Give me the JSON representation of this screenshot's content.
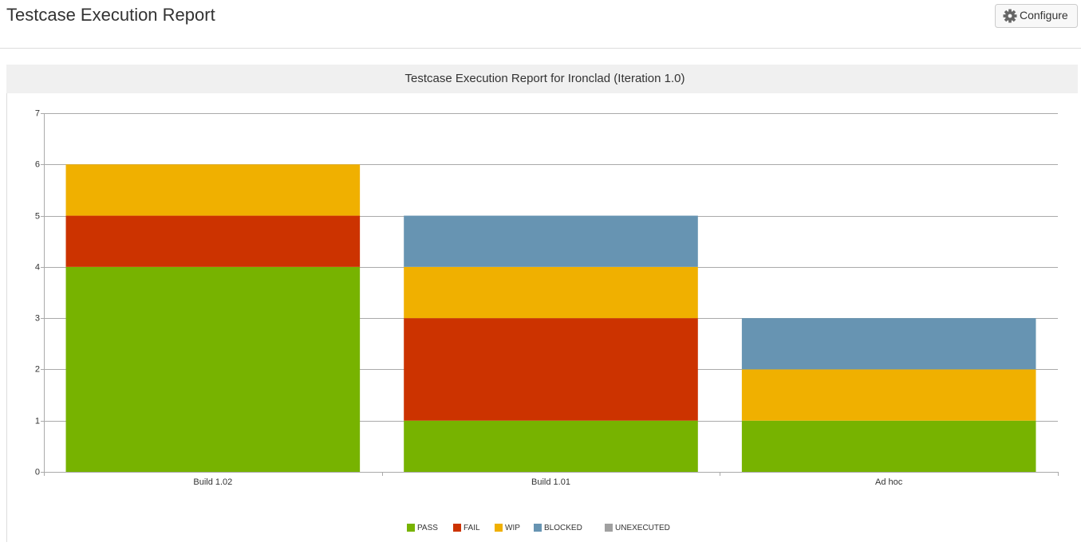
{
  "header": {
    "title": "Testcase Execution Report",
    "button": "Configure"
  },
  "chart_data": {
    "type": "stacked-bar",
    "title": "Testcase Execution Report for Ironclad  (Iteration 1.0)",
    "categories": [
      "Build 1.02",
      "Build 1.01",
      "Ad hoc"
    ],
    "series": [
      {
        "name": "PASS",
        "color": "#77b300",
        "values": [
          4,
          1,
          1
        ]
      },
      {
        "name": "FAIL",
        "color": "#cc3300",
        "values": [
          1,
          2,
          0
        ]
      },
      {
        "name": "WIP",
        "color": "#f0b000",
        "values": [
          1,
          1,
          1
        ]
      },
      {
        "name": "BLOCKED",
        "color": "#6794b2",
        "values": [
          0,
          1,
          1
        ]
      },
      {
        "name": "UNEXECUTED",
        "color": "#a0a0a0",
        "values": [
          0,
          0,
          0
        ]
      }
    ],
    "ylim": [
      0,
      7
    ],
    "yticks": [
      0,
      1,
      2,
      3,
      4,
      5,
      6,
      7
    ],
    "grid": true,
    "legend": "bottom"
  }
}
